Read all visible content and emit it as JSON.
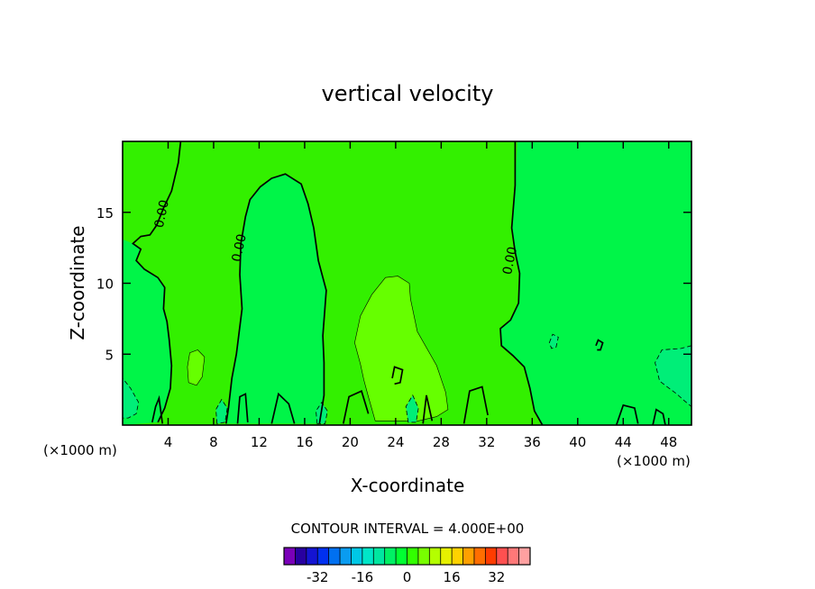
{
  "chart_data": {
    "type": "contour",
    "title": "vertical velocity",
    "xlabel": "X-coordinate",
    "ylabel": "Z-coordinate",
    "x_unit": "(×1000 m)",
    "xlim": [
      0,
      50
    ],
    "ylim": [
      0,
      20
    ],
    "x_ticks": [
      4,
      8,
      12,
      16,
      20,
      24,
      28,
      32,
      36,
      40,
      44,
      48
    ],
    "y_ticks": [
      5,
      10,
      15
    ],
    "contour_interval_text": "CONTOUR INTERVAL =  4.000E+00",
    "zero_contour_label": "0.00",
    "contour_label_positions": [
      {
        "x": 3.4,
        "y": 14.9
      },
      {
        "x": 10.2,
        "y": 12.5
      },
      {
        "x": 34.0,
        "y": 11.6
      }
    ],
    "colorbar": {
      "colors": [
        "#7a00b8",
        "#2800a0",
        "#1414d2",
        "#0030f0",
        "#0070f0",
        "#0a9cf0",
        "#00c8e6",
        "#00e6c8",
        "#00e6a0",
        "#00f064",
        "#00ff32",
        "#32ff00",
        "#78ff00",
        "#b4ff00",
        "#e6f000",
        "#ffd200",
        "#ffa000",
        "#ff6e00",
        "#ff3c00",
        "#ff5050",
        "#ff7878",
        "#ffa0a0"
      ],
      "tick_labels": [
        "-32",
        "-16",
        "0",
        "16",
        "32"
      ],
      "tick_values": [
        -32,
        -16,
        0,
        16,
        32
      ]
    },
    "regions": [
      {
        "name": "weak-updraft-24-28",
        "value": 4,
        "color": "#66ff00",
        "outline": [
          [
            22.2,
            0.3
          ],
          [
            21.6,
            2.0
          ],
          [
            21.2,
            3.2
          ],
          [
            20.9,
            4.3
          ],
          [
            20.4,
            5.8
          ],
          [
            20.9,
            7.7
          ],
          [
            21.9,
            9.2
          ],
          [
            23.1,
            10.4
          ],
          [
            24.2,
            10.5
          ],
          [
            25.2,
            10.0
          ],
          [
            25.3,
            8.9
          ],
          [
            25.9,
            6.6
          ],
          [
            27.6,
            4.2
          ],
          [
            28.4,
            2.3
          ],
          [
            28.6,
            1.1
          ],
          [
            27.6,
            0.6
          ],
          [
            26.0,
            0.3
          ]
        ]
      },
      {
        "name": "weak-updraft-6",
        "value": 4,
        "color": "#66ff00",
        "outline": [
          [
            5.8,
            3.0
          ],
          [
            5.7,
            4.1
          ],
          [
            5.9,
            5.1
          ],
          [
            6.6,
            5.3
          ],
          [
            7.2,
            4.8
          ],
          [
            7.0,
            3.4
          ],
          [
            6.5,
            2.8
          ]
        ]
      },
      {
        "name": "downdraft-lower-left",
        "value": -4,
        "color": "#00ee78",
        "outline": [
          [
            0.0,
            0.5
          ],
          [
            0.0,
            3.3
          ],
          [
            0.7,
            2.6
          ],
          [
            1.4,
            1.6
          ],
          [
            1.2,
            0.8
          ],
          [
            0.5,
            0.5
          ]
        ]
      },
      {
        "name": "downdraft-x9",
        "value": -4,
        "color": "#00ee78",
        "outline": [
          [
            8.3,
            0.1
          ],
          [
            8.2,
            1.1
          ],
          [
            8.7,
            1.8
          ],
          [
            9.2,
            1.2
          ],
          [
            9.0,
            0.2
          ]
        ]
      },
      {
        "name": "downdraft-x17",
        "value": -4,
        "color": "#00ee78",
        "outline": [
          [
            17.1,
            0.1
          ],
          [
            17.0,
            1.0
          ],
          [
            17.5,
            1.6
          ],
          [
            18.0,
            1.0
          ],
          [
            17.8,
            0.1
          ]
        ]
      },
      {
        "name": "downdraft-x25",
        "value": -4,
        "color": "#00ee78",
        "outline": [
          [
            25.1,
            0.2
          ],
          [
            24.9,
            1.3
          ],
          [
            25.5,
            2.1
          ],
          [
            26.0,
            1.2
          ],
          [
            25.8,
            0.2
          ]
        ]
      },
      {
        "name": "downdraft-x38",
        "value": -4,
        "color": "#00ee78",
        "outline": [
          [
            37.5,
            5.8
          ],
          [
            37.8,
            6.4
          ],
          [
            38.3,
            6.2
          ],
          [
            38.1,
            5.5
          ],
          [
            37.7,
            5.4
          ]
        ]
      },
      {
        "name": "downdraft-right-edge",
        "value": -4,
        "color": "#00ee78",
        "outline": [
          [
            50.0,
            5.6
          ],
          [
            49.1,
            5.4
          ],
          [
            47.4,
            5.3
          ],
          [
            46.8,
            4.4
          ],
          [
            47.2,
            3.1
          ],
          [
            48.7,
            2.2
          ],
          [
            49.4,
            1.7
          ],
          [
            50.0,
            1.3
          ]
        ]
      }
    ],
    "updraft_regions": [
      {
        "name": "updraft-left-column",
        "color": "#00f548",
        "outline": [
          [
            0.0,
            13.1
          ],
          [
            0.9,
            12.8
          ],
          [
            1.6,
            12.4
          ],
          [
            1.2,
            11.6
          ],
          [
            1.9,
            11.0
          ],
          [
            3.1,
            10.4
          ],
          [
            3.7,
            9.7
          ],
          [
            3.6,
            8.2
          ],
          [
            3.9,
            7.3
          ],
          [
            4.1,
            6.0
          ],
          [
            4.3,
            4.2
          ],
          [
            4.2,
            2.6
          ],
          [
            3.7,
            1.2
          ],
          [
            3.1,
            0.2
          ],
          [
            0.0,
            0.0
          ]
        ]
      },
      {
        "name": "updraft-tower",
        "color": "#00f548",
        "outline": [
          [
            9.1,
            0.1
          ],
          [
            9.3,
            1.2
          ],
          [
            9.6,
            3.3
          ],
          [
            10.0,
            5.0
          ],
          [
            10.5,
            8.2
          ],
          [
            10.3,
            10.6
          ],
          [
            10.4,
            12.8
          ],
          [
            10.8,
            14.7
          ],
          [
            11.2,
            15.9
          ],
          [
            12.1,
            16.8
          ],
          [
            13.1,
            17.4
          ],
          [
            14.3,
            17.7
          ],
          [
            15.7,
            17.0
          ],
          [
            16.3,
            15.6
          ],
          [
            16.8,
            13.9
          ],
          [
            17.2,
            11.6
          ],
          [
            17.9,
            9.5
          ],
          [
            17.6,
            6.3
          ],
          [
            17.7,
            4.4
          ],
          [
            17.7,
            2.1
          ],
          [
            17.3,
            0.1
          ]
        ]
      },
      {
        "name": "updraft-right-column",
        "color": "#00f548",
        "outline": [
          [
            34.7,
            20.0
          ],
          [
            50.0,
            20.0
          ],
          [
            50.0,
            0.0
          ],
          [
            36.9,
            0.0
          ],
          [
            36.2,
            1.0
          ],
          [
            35.8,
            2.6
          ],
          [
            35.3,
            4.1
          ],
          [
            34.3,
            4.9
          ],
          [
            33.3,
            5.6
          ],
          [
            33.2,
            6.8
          ],
          [
            34.1,
            7.4
          ],
          [
            34.8,
            8.6
          ],
          [
            34.9,
            10.7
          ],
          [
            34.5,
            12.2
          ],
          [
            34.2,
            13.9
          ],
          [
            34.5,
            16.9
          ]
        ]
      }
    ],
    "zero_contours": [
      [
        [
          5.1,
          20.0
        ],
        [
          4.9,
          18.5
        ],
        [
          4.3,
          16.5
        ],
        [
          3.6,
          15.3
        ],
        [
          3.0,
          14.1
        ],
        [
          2.4,
          13.4
        ],
        [
          1.6,
          13.3
        ],
        [
          0.9,
          12.8
        ],
        [
          1.6,
          12.4
        ],
        [
          1.2,
          11.6
        ],
        [
          1.9,
          11.0
        ],
        [
          3.1,
          10.4
        ],
        [
          3.7,
          9.7
        ],
        [
          3.6,
          8.2
        ],
        [
          3.9,
          7.3
        ],
        [
          4.1,
          6.0
        ],
        [
          4.3,
          4.2
        ],
        [
          4.2,
          2.6
        ],
        [
          3.7,
          1.2
        ],
        [
          3.1,
          0.2
        ]
      ],
      [
        [
          9.1,
          0.1
        ],
        [
          9.3,
          1.2
        ],
        [
          9.6,
          3.3
        ],
        [
          10.0,
          5.0
        ],
        [
          10.5,
          8.2
        ],
        [
          10.3,
          10.6
        ],
        [
          10.4,
          12.8
        ],
        [
          10.8,
          14.7
        ],
        [
          11.2,
          15.9
        ],
        [
          12.1,
          16.8
        ],
        [
          13.1,
          17.4
        ],
        [
          14.3,
          17.7
        ],
        [
          15.7,
          17.0
        ],
        [
          16.3,
          15.6
        ],
        [
          16.8,
          13.9
        ],
        [
          17.2,
          11.6
        ],
        [
          17.9,
          9.5
        ],
        [
          17.6,
          6.3
        ],
        [
          17.7,
          4.4
        ],
        [
          17.7,
          2.1
        ],
        [
          17.3,
          0.1
        ]
      ],
      [
        [
          34.5,
          20.0
        ],
        [
          34.5,
          16.9
        ],
        [
          34.2,
          13.9
        ],
        [
          34.5,
          12.2
        ],
        [
          34.9,
          10.7
        ],
        [
          34.8,
          8.6
        ],
        [
          34.1,
          7.4
        ],
        [
          33.2,
          6.8
        ],
        [
          33.3,
          5.6
        ],
        [
          34.3,
          4.9
        ],
        [
          35.3,
          4.1
        ],
        [
          35.8,
          2.6
        ],
        [
          36.2,
          1.0
        ],
        [
          36.9,
          0.0
        ]
      ],
      [
        [
          3.5,
          0.1
        ],
        [
          3.2,
          1.9
        ],
        [
          2.9,
          1.3
        ],
        [
          2.6,
          0.2
        ]
      ],
      [
        [
          10.1,
          0.1
        ],
        [
          10.3,
          2.0
        ],
        [
          10.8,
          2.2
        ],
        [
          11.0,
          0.2
        ]
      ],
      [
        [
          13.1,
          0.1
        ],
        [
          13.7,
          2.2
        ],
        [
          14.6,
          1.5
        ],
        [
          15.1,
          0.1
        ]
      ],
      [
        [
          19.4,
          0.1
        ],
        [
          19.9,
          2.0
        ],
        [
          21.0,
          2.4
        ],
        [
          21.6,
          0.8
        ]
      ],
      [
        [
          26.4,
          0.1
        ],
        [
          26.7,
          2.1
        ],
        [
          27.2,
          0.3
        ]
      ],
      [
        [
          30.0,
          0.1
        ],
        [
          30.5,
          2.4
        ],
        [
          31.6,
          2.7
        ],
        [
          32.1,
          0.7
        ]
      ],
      [
        [
          23.7,
          3.3
        ],
        [
          23.9,
          4.1
        ],
        [
          24.6,
          3.9
        ],
        [
          24.4,
          3.0
        ],
        [
          23.9,
          2.9
        ]
      ],
      [
        [
          43.4,
          0.0
        ],
        [
          44.0,
          1.4
        ],
        [
          45.0,
          1.2
        ],
        [
          45.3,
          0.1
        ]
      ],
      [
        [
          46.6,
          0.0
        ],
        [
          46.9,
          1.1
        ],
        [
          47.5,
          0.8
        ],
        [
          47.7,
          0.0
        ]
      ],
      [
        [
          41.6,
          5.6
        ],
        [
          41.8,
          6.0
        ],
        [
          42.2,
          5.8
        ],
        [
          42.0,
          5.3
        ],
        [
          41.7,
          5.3
        ]
      ]
    ]
  }
}
